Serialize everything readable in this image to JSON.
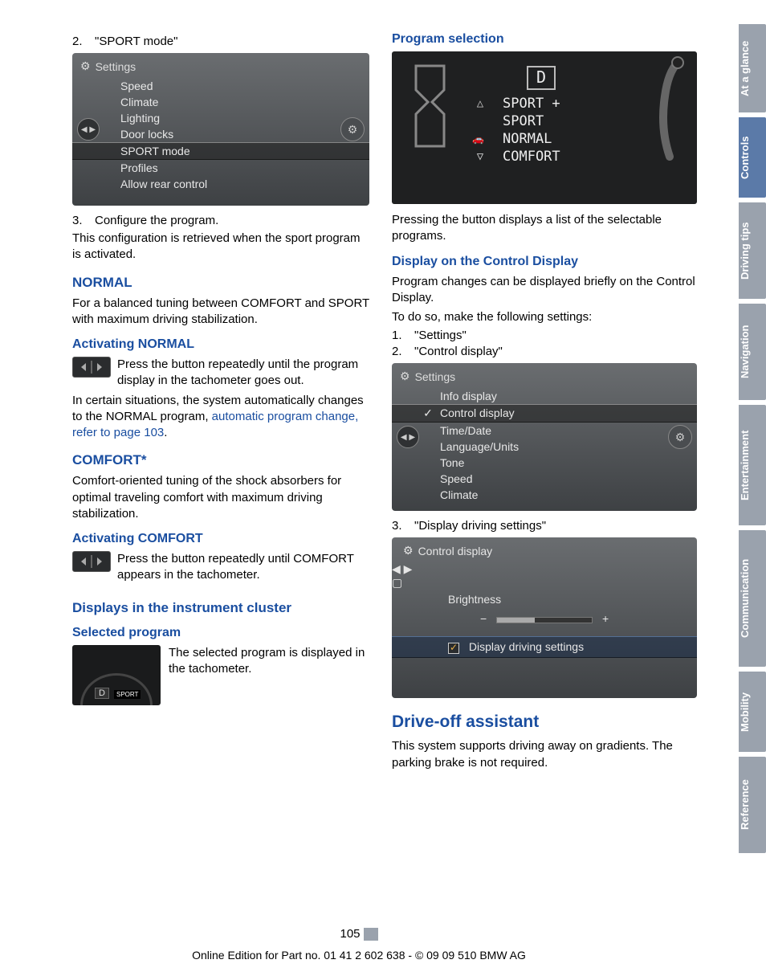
{
  "colors": {
    "heading_blue": "#1a4ea0",
    "link_blue": "#1a4ea0",
    "tab_inactive": "#9aa2ad",
    "tab_active": "#5b7aa8",
    "screenshot_bg_top": "#6a6d70",
    "screenshot_bg_bottom": "#3e4144",
    "screenshot_text": "#e8e8e8",
    "tacho_bg": "#1a1b1c"
  },
  "left": {
    "step2": {
      "num": "2.",
      "text": "\"SPORT mode\""
    },
    "shot1": {
      "title": "Settings",
      "items": [
        "Speed",
        "Climate",
        "Lighting",
        "Door locks",
        "SPORT mode",
        "Profiles",
        "Allow rear control"
      ],
      "selected_index": 4
    },
    "step3": {
      "num": "3.",
      "text": "Configure the program."
    },
    "p_config": "This configuration is retrieved when the sport program is activated.",
    "normal": {
      "title": "NORMAL",
      "body": "For a balanced tuning between COMFORT and SPORT with maximum driving stabilization."
    },
    "act_normal": {
      "title": "Activating NORMAL",
      "body1": "Press the button repeatedly until the program display in the tachometer goes out.",
      "body2a": "In certain situations, the system automatically changes to the NORMAL program, ",
      "link": "automatic program change, refer to page 103",
      "body2b": "."
    },
    "comfort": {
      "title": "COMFORT*",
      "body": "Comfort-oriented tuning of the shock absorbers for optimal traveling comfort with maximum driving stabilization."
    },
    "act_comfort": {
      "title": "Activating COMFORT",
      "body": "Press the button repeatedly until COM­FORT appears in the tachometer."
    },
    "displays": {
      "title": "Displays in the instrument cluster"
    },
    "selected_prog": {
      "title": "Selected program",
      "body": "The selected program is dis­played in the tachometer.",
      "badge_d": "D",
      "badge_sport": "SPORT"
    }
  },
  "right": {
    "prog_sel": {
      "title": "Program selection",
      "d": "D",
      "modes": [
        "SPORT +",
        "SPORT",
        "NORMAL",
        "COMFORT"
      ],
      "body": "Pressing the button displays a list of the select­able programs."
    },
    "disp_cd": {
      "title": "Display on the Control Display",
      "p1": "Program changes can be displayed briefly on the Control Display.",
      "p2": "To do so, make the following settings:",
      "step1": {
        "num": "1.",
        "text": "\"Settings\""
      },
      "step2": {
        "num": "2.",
        "text": "\"Control display\""
      }
    },
    "shot2": {
      "title": "Settings",
      "items": [
        "Info display",
        "Control display",
        "Time/Date",
        "Language/Units",
        "Tone",
        "Speed",
        "Climate"
      ],
      "selected_index": 1,
      "checked_index": 1
    },
    "step3": {
      "num": "3.",
      "text": "\"Display driving settings\""
    },
    "shot3": {
      "title": "Control display",
      "brightness_label": "Brightness",
      "minus": "−",
      "plus": "+",
      "checkbox_label": "Display driving settings"
    },
    "drive_off": {
      "title": "Drive-off assistant",
      "body": "This system supports driving away on gradients. The parking brake is not required."
    }
  },
  "tabs": [
    "At a glance",
    "Controls",
    "Driving tips",
    "Navigation",
    "Entertainment",
    "Communication",
    "Mobility",
    "Reference"
  ],
  "tabs_active_index": 1,
  "page_number": "105",
  "footer": "Online Edition for Part no. 01 41 2 602 638 - © 09 09 510 BMW AG"
}
